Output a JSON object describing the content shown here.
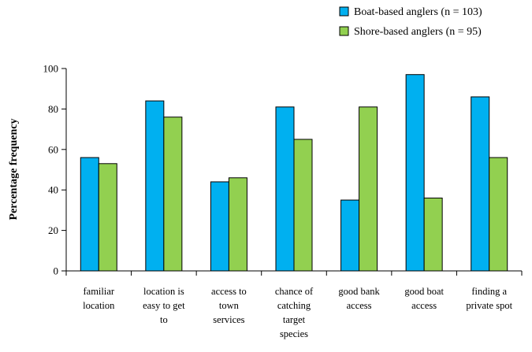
{
  "chart_data": {
    "type": "bar",
    "title": "",
    "xlabel": "",
    "ylabel": "Percentage frequency",
    "ylim": [
      0,
      100
    ],
    "yticks": [
      0,
      20,
      40,
      60,
      80,
      100
    ],
    "grid": false,
    "legend_position": "top-right",
    "categories": [
      [
        "familiar",
        "location"
      ],
      [
        "location is",
        "easy to get",
        "to"
      ],
      [
        "access to",
        "town",
        "services"
      ],
      [
        "chance of",
        "catching",
        "target",
        "species"
      ],
      [
        "good bank",
        "access"
      ],
      [
        "good boat",
        "access"
      ],
      [
        "finding a",
        "private spot"
      ]
    ],
    "series": [
      {
        "name": "Boat-based anglers (n = 103)",
        "color": "#00b0f0",
        "values": [
          56,
          84,
          44,
          81,
          35,
          97,
          86
        ]
      },
      {
        "name": "Shore-based anglers (n = 95)",
        "color": "#92d050",
        "values": [
          53,
          76,
          46,
          65,
          81,
          36,
          56
        ]
      }
    ]
  }
}
